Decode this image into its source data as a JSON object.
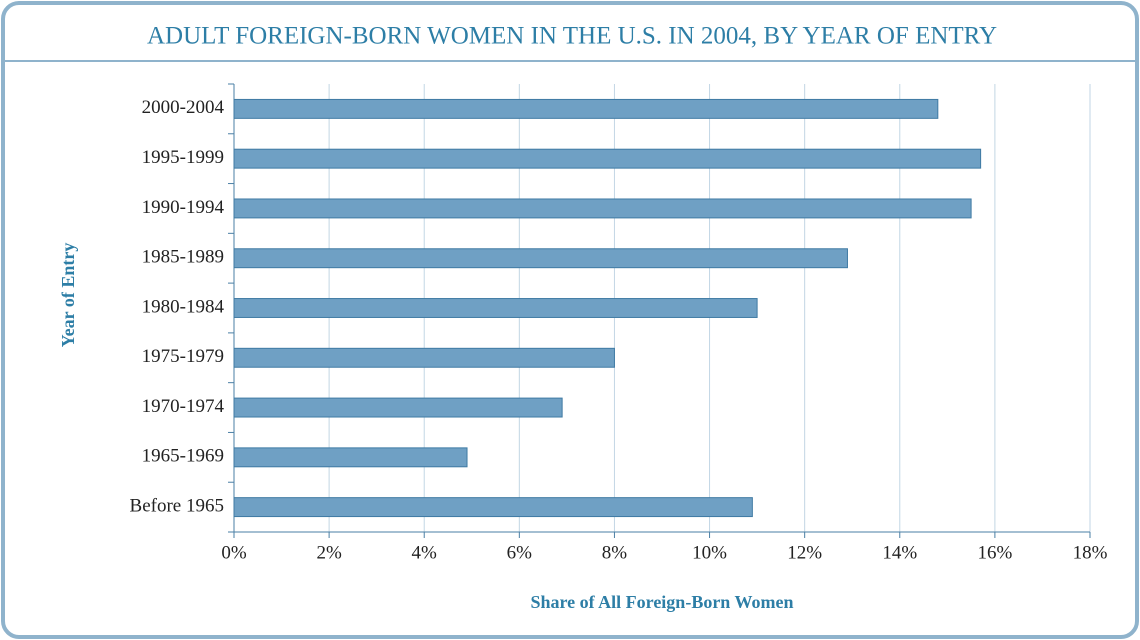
{
  "chart_data": {
    "type": "bar",
    "orientation": "horizontal",
    "title": "ADULT FOREIGN-BORN WOMEN IN THE U.S. IN 2004, BY YEAR OF ENTRY",
    "x_label": "Share of All Foreign-Born Women",
    "y_label": "Year of Entry",
    "categories": [
      "2000-2004",
      "1995-1999",
      "1990-1994",
      "1985-1989",
      "1980-1984",
      "1975-1979",
      "1970-1974",
      "1965-1969",
      "Before 1965"
    ],
    "values": [
      14.8,
      15.7,
      15.5,
      12.9,
      11.0,
      8.0,
      6.9,
      4.9,
      10.9
    ],
    "color": "#6fa0c4",
    "xlim": [
      0,
      18
    ],
    "xticks": [
      {
        "value": 0,
        "label": "0%"
      },
      {
        "value": 2,
        "label": "2%"
      },
      {
        "value": 4,
        "label": "4%"
      },
      {
        "value": 6,
        "label": "6%"
      },
      {
        "value": 8,
        "label": "8%"
      },
      {
        "value": 10,
        "label": "10%"
      },
      {
        "value": 12,
        "label": "12%"
      },
      {
        "value": 14,
        "label": "14%"
      },
      {
        "value": 16,
        "label": "16%"
      },
      {
        "value": 18,
        "label": "18%"
      }
    ],
    "grid": true
  }
}
